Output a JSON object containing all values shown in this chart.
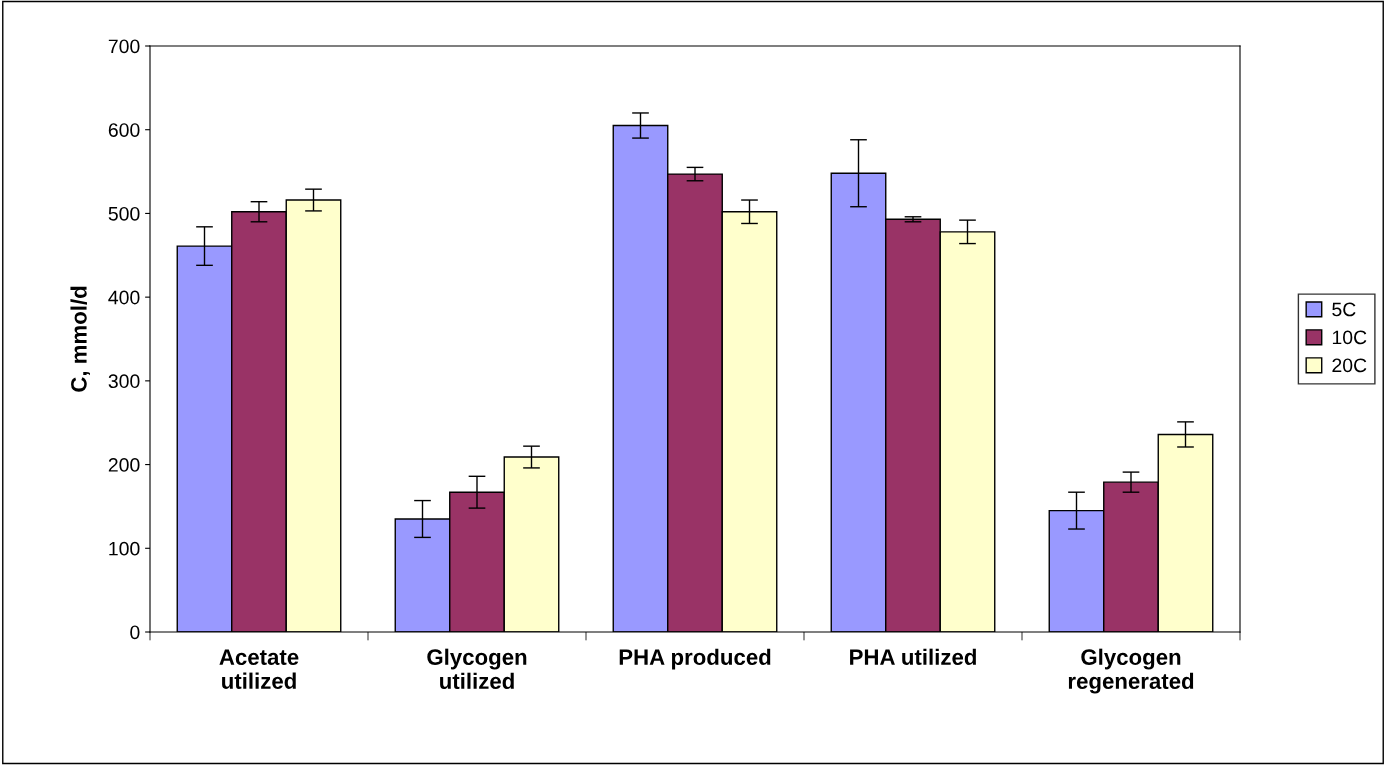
{
  "chart_data": {
    "type": "bar",
    "ylabel": "C, mmol/d",
    "categories": [
      "Acetate\nutilized",
      "Glycogen\nutilized",
      "PHA produced",
      "PHA utilized",
      "Glycogen\nregenerated"
    ],
    "series": [
      {
        "name": "5C",
        "color": "#9999ff",
        "values": [
          461,
          135,
          605,
          548,
          145
        ],
        "errors": [
          23,
          22,
          15,
          40,
          22
        ]
      },
      {
        "name": "10C",
        "color": "#993366",
        "values": [
          502,
          167,
          547,
          493,
          179
        ],
        "errors": [
          12,
          19,
          8,
          3,
          12
        ]
      },
      {
        "name": "20C",
        "color": "#ffffcc",
        "values": [
          516,
          209,
          502,
          478,
          236
        ],
        "errors": [
          13,
          13,
          14,
          14,
          15
        ]
      }
    ],
    "ylim": [
      0,
      700
    ],
    "yticks": [
      0,
      100,
      200,
      300,
      400,
      500,
      600,
      700
    ],
    "grid": false,
    "legend": "right"
  }
}
